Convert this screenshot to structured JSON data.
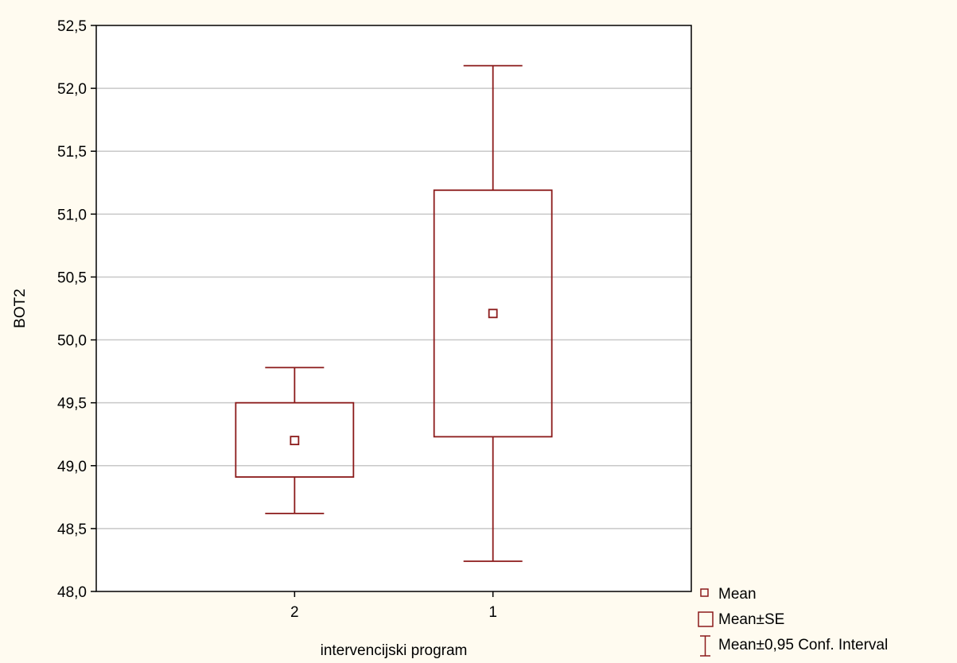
{
  "colors": {
    "background": "#fffbf0",
    "plot_area": "#ffffff",
    "series": "#8b1a1a",
    "grid": "#c8c8c8",
    "axis": "#000000"
  },
  "chart_data": {
    "type": "box",
    "xlabel": "intervencijski program",
    "ylabel": "BOT2",
    "ylim": [
      48.0,
      52.5
    ],
    "y_ticks": [
      "48,0",
      "48,5",
      "49,0",
      "49,5",
      "50,0",
      "50,5",
      "51,0",
      "51,5",
      "52,0",
      "52,5"
    ],
    "y_tick_values": [
      48.0,
      48.5,
      49.0,
      49.5,
      50.0,
      50.5,
      51.0,
      51.5,
      52.0,
      52.5
    ],
    "grid": "horizontal",
    "legend_position": "bottom-right outside",
    "categories": [
      "2",
      "1"
    ],
    "groups": [
      {
        "category": "2",
        "mean": 49.2,
        "se_low": 48.91,
        "se_high": 49.5,
        "ci_low": 48.62,
        "ci_high": 49.78
      },
      {
        "category": "1",
        "mean": 50.21,
        "se_low": 49.23,
        "se_high": 51.19,
        "ci_low": 48.24,
        "ci_high": 52.18
      }
    ],
    "legend": [
      {
        "symbol": "small-square",
        "label": "Mean"
      },
      {
        "symbol": "box",
        "label": "Mean±SE"
      },
      {
        "symbol": "whisker",
        "label": "Mean±0,95 Conf. Interval"
      }
    ]
  }
}
